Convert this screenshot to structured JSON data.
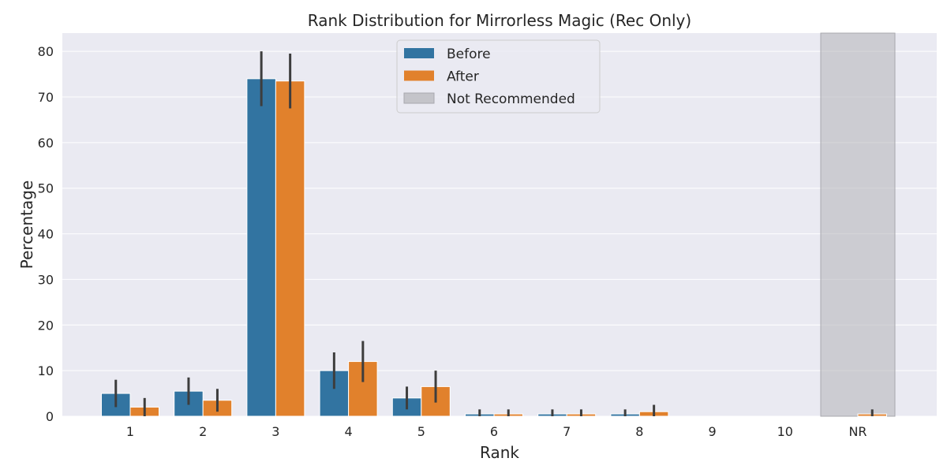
{
  "chart_data": {
    "type": "bar",
    "title": "Rank Distribution for Mirrorless Magic (Rec Only)",
    "xlabel": "Rank",
    "ylabel": "Percentage",
    "categories": [
      "1",
      "2",
      "3",
      "4",
      "5",
      "6",
      "7",
      "8",
      "9",
      "10",
      "NR"
    ],
    "ylim": [
      0,
      84
    ],
    "yticks": [
      0,
      10,
      20,
      30,
      40,
      50,
      60,
      70,
      80
    ],
    "grid": true,
    "legend_position": "top-center",
    "series": [
      {
        "name": "Before",
        "color": "#3274a1",
        "values": [
          5.0,
          5.5,
          74.0,
          10.0,
          4.0,
          0.5,
          0.5,
          0.5,
          0,
          0,
          0
        ],
        "error_low": [
          2.0,
          2.5,
          68.0,
          6.0,
          1.5,
          0,
          0,
          0,
          0,
          0,
          0
        ],
        "error_high": [
          8.0,
          8.5,
          80.0,
          14.0,
          6.5,
          1.5,
          1.5,
          1.5,
          0,
          0,
          0
        ]
      },
      {
        "name": "After",
        "color": "#e1812c",
        "values": [
          2.0,
          3.5,
          73.5,
          12.0,
          6.5,
          0.5,
          0.5,
          1.0,
          0,
          0,
          0.5
        ],
        "error_low": [
          0,
          1.0,
          67.5,
          7.5,
          3.0,
          0,
          0,
          0,
          0,
          0,
          0
        ],
        "error_high": [
          4.0,
          6.0,
          79.5,
          16.5,
          10.0,
          1.5,
          1.5,
          2.5,
          0,
          0,
          1.5
        ]
      }
    ],
    "highlight": {
      "label": "Not Recommended",
      "category": "NR",
      "color": "#b3b3b8"
    }
  }
}
